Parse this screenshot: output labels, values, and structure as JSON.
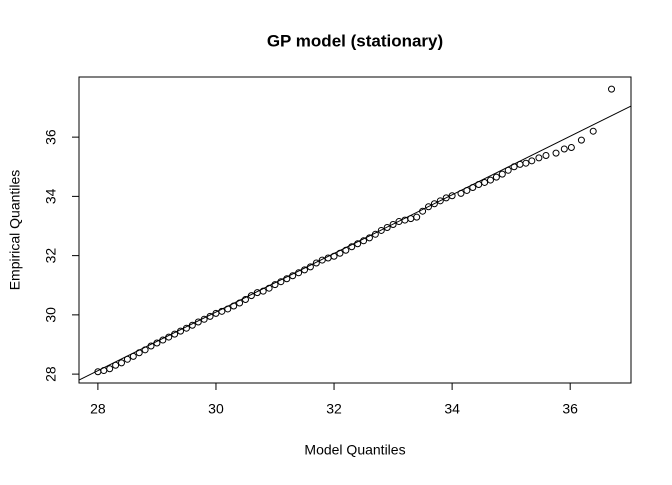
{
  "chart_data": {
    "type": "scatter",
    "title": "GP model (stationary)",
    "x_label": "Model Quantiles",
    "y_label": "Empirical Quantiles",
    "xlim": [
      27.68,
      37.03
    ],
    "ylim": [
      27.7,
      38.03
    ],
    "xticks": [
      28,
      30,
      32,
      34,
      36
    ],
    "yticks": [
      28,
      30,
      32,
      34,
      36
    ],
    "ref_line": {
      "x": [
        27.68,
        37.03
      ],
      "y": [
        27.8,
        37.05
      ]
    },
    "x": [
      28.0,
      28.1,
      28.2,
      28.3,
      28.4,
      28.5,
      28.6,
      28.7,
      28.8,
      28.9,
      29.0,
      29.1,
      29.2,
      29.3,
      29.4,
      29.5,
      29.6,
      29.7,
      29.8,
      29.9,
      30.0,
      30.1,
      30.2,
      30.3,
      30.4,
      30.5,
      30.6,
      30.7,
      30.8,
      30.9,
      31.0,
      31.1,
      31.2,
      31.3,
      31.4,
      31.5,
      31.6,
      31.7,
      31.8,
      31.9,
      32.0,
      32.1,
      32.2,
      32.3,
      32.4,
      32.5,
      32.6,
      32.7,
      32.8,
      32.9,
      33.0,
      33.1,
      33.2,
      33.3,
      33.4,
      33.5,
      33.6,
      33.7,
      33.8,
      33.9,
      34.0,
      34.15,
      34.25,
      34.35,
      34.45,
      34.55,
      34.65,
      34.75,
      34.85,
      34.95,
      35.05,
      35.15,
      35.25,
      35.35,
      35.47,
      35.59,
      35.76,
      35.9,
      36.02,
      36.19,
      36.39,
      36.7
    ],
    "y": [
      28.08,
      28.12,
      28.18,
      28.3,
      28.38,
      28.5,
      28.6,
      28.72,
      28.82,
      28.95,
      29.05,
      29.15,
      29.25,
      29.35,
      29.45,
      29.55,
      29.65,
      29.76,
      29.85,
      29.95,
      30.05,
      30.12,
      30.2,
      30.3,
      30.4,
      30.52,
      30.65,
      30.75,
      30.8,
      30.9,
      31.02,
      31.12,
      31.22,
      31.32,
      31.42,
      31.52,
      31.62,
      31.75,
      31.85,
      31.92,
      31.98,
      32.08,
      32.18,
      32.3,
      32.4,
      32.5,
      32.6,
      32.72,
      32.85,
      32.95,
      33.05,
      33.15,
      33.2,
      33.25,
      33.3,
      33.5,
      33.65,
      33.75,
      33.85,
      33.95,
      34.02,
      34.1,
      34.2,
      34.3,
      34.4,
      34.47,
      34.55,
      34.65,
      34.75,
      34.88,
      35.0,
      35.08,
      35.12,
      35.2,
      35.3,
      35.38,
      35.46,
      35.6,
      35.65,
      35.9,
      36.2,
      37.62
    ]
  }
}
